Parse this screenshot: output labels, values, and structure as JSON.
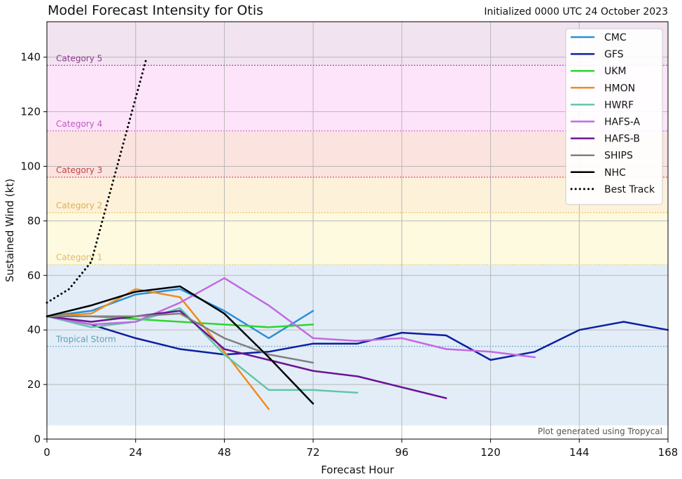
{
  "chart_data": {
    "type": "line",
    "title": "Model Forecast Intensity for Otis",
    "subtitle": "Initialized 0000 UTC 24 October 2023",
    "xlabel": "Forecast Hour",
    "ylabel": "Sustained Wind (kt)",
    "xlim": [
      0,
      168
    ],
    "ylim": [
      0,
      153
    ],
    "xticks": [
      0,
      24,
      48,
      72,
      96,
      120,
      144,
      168
    ],
    "yticks": [
      0,
      20,
      40,
      60,
      80,
      100,
      120,
      140
    ],
    "grid": true,
    "legend_position": "top-right",
    "footnote": "Plot generated using Tropycal",
    "categories": [
      {
        "label": "Tropical Storm",
        "threshold": 34,
        "band": [
          5,
          64
        ],
        "color": "#e3edf8",
        "line_color": "#7fb3d5",
        "label_color": "#5f9fb3"
      },
      {
        "label": "Category 1",
        "threshold": 64,
        "band": [
          64,
          83
        ],
        "color": "#fdfae0",
        "line_color": "#f0d98a",
        "label_color": "#e3b86a"
      },
      {
        "label": "Category 2",
        "threshold": 83,
        "band": [
          83,
          96
        ],
        "color": "#fdf1da",
        "line_color": "#f3c86e",
        "label_color": "#e0b04e"
      },
      {
        "label": "Category 3",
        "threshold": 96,
        "band": [
          96,
          113
        ],
        "color": "#fbe3df",
        "line_color": "#e06060",
        "label_color": "#c04545"
      },
      {
        "label": "Category 4",
        "threshold": 113,
        "band": [
          113,
          137
        ],
        "color": "#fde4fa",
        "line_color": "#d67ad6",
        "label_color": "#c05ac0"
      },
      {
        "label": "Category 5",
        "threshold": 137,
        "band": [
          137,
          153
        ],
        "color": "#f1e3ef",
        "line_color": "#c24ec2",
        "label_color": "#8e3a8e"
      }
    ],
    "series": [
      {
        "name": "CMC",
        "color": "#2b8fd6",
        "dash": "solid",
        "x": [
          0,
          12,
          24,
          36,
          48,
          60,
          72
        ],
        "y": [
          45,
          47,
          53,
          55,
          47,
          37,
          47
        ]
      },
      {
        "name": "GFS",
        "color": "#0d1f9e",
        "dash": "solid",
        "x": [
          0,
          12,
          24,
          36,
          48,
          60,
          72,
          84,
          96,
          108,
          120,
          132,
          144,
          156,
          168
        ],
        "y": [
          45,
          42,
          37,
          33,
          31,
          32,
          35,
          35,
          39,
          38,
          29,
          32,
          40,
          43,
          40
        ]
      },
      {
        "name": "UKM",
        "color": "#2fd52f",
        "dash": "solid",
        "x": [
          0,
          12,
          24,
          36,
          48,
          60,
          72
        ],
        "y": [
          45,
          45,
          44,
          43,
          42,
          41,
          42
        ]
      },
      {
        "name": "HMON",
        "color": "#f08c1a",
        "dash": "solid",
        "x": [
          0,
          12,
          24,
          36,
          48,
          60
        ],
        "y": [
          45,
          46,
          55,
          52,
          32,
          11
        ]
      },
      {
        "name": "HWRF",
        "color": "#62c6a4",
        "dash": "solid",
        "x": [
          0,
          12,
          24,
          36,
          48,
          60,
          72,
          84
        ],
        "y": [
          45,
          41,
          43,
          48,
          31,
          18,
          18,
          17
        ]
      },
      {
        "name": "HAFS-A",
        "color": "#c26ae0",
        "dash": "solid",
        "x": [
          0,
          12,
          24,
          36,
          48,
          60,
          72,
          84,
          96,
          108,
          120,
          132
        ],
        "y": [
          45,
          42,
          43,
          50,
          59,
          49,
          37,
          36,
          37,
          33,
          32,
          30
        ]
      },
      {
        "name": "HAFS-B",
        "color": "#6a1496",
        "dash": "solid",
        "x": [
          0,
          12,
          24,
          36,
          48,
          60,
          72,
          84,
          96,
          108
        ],
        "y": [
          45,
          43,
          45,
          47,
          33,
          29,
          25,
          23,
          19,
          15
        ]
      },
      {
        "name": "SHIPS",
        "color": "#808080",
        "dash": "solid",
        "x": [
          0,
          12,
          24,
          36,
          48,
          60,
          72
        ],
        "y": [
          45,
          45,
          45,
          46,
          37,
          31,
          28
        ]
      },
      {
        "name": "NHC",
        "color": "#000000",
        "dash": "solid",
        "x": [
          0,
          12,
          24,
          36,
          48,
          60,
          72
        ],
        "y": [
          45,
          49,
          54,
          56,
          46,
          30,
          13
        ]
      },
      {
        "name": "Best Track",
        "color": "#000000",
        "dash": "dotted",
        "x": [
          0,
          6,
          12,
          18,
          24,
          27
        ],
        "y": [
          50,
          55,
          65,
          95,
          125,
          140
        ]
      }
    ]
  }
}
